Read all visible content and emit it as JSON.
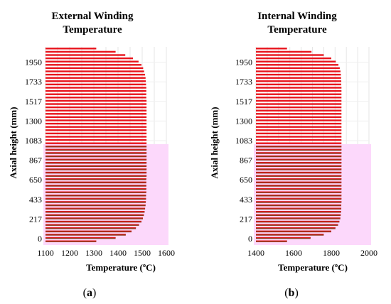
{
  "chart_data": [
    {
      "type": "bar",
      "orientation": "horizontal",
      "title_lines": [
        "External Winding",
        "Temperature"
      ],
      "xlabel": "Temperature (ºC)",
      "ylabel": "Axial height (mm)",
      "xlim": [
        1100,
        1600
      ],
      "xticks": [
        "1100",
        "1200",
        "1300",
        "1400",
        "1500",
        "1600"
      ],
      "yticks": [
        "0",
        "217",
        "433",
        "650",
        "867",
        "1083",
        "1300",
        "1517",
        "1733",
        "1950"
      ],
      "grid": true,
      "caption": "(a)",
      "caption_letter": "a",
      "series_colors": {
        "upper": "#e8141c",
        "lower": "#8a3a1a",
        "band": "#fcd8fb"
      },
      "values": [
        1310,
        1390,
        1432,
        1456,
        1474,
        1487,
        1497,
        1503,
        1507,
        1510,
        1512,
        1514,
        1515,
        1516,
        1516,
        1517,
        1517,
        1517,
        1517,
        1517,
        1518,
        1518,
        1518,
        1518,
        1518,
        1518,
        1518,
        1518,
        1518,
        1518,
        1518,
        1518,
        1518,
        1518,
        1518,
        1518,
        1518,
        1518,
        1518,
        1518,
        1518,
        1518,
        1518,
        1518,
        1517,
        1517,
        1517,
        1517,
        1516,
        1515,
        1514,
        1512,
        1508,
        1504,
        1497,
        1485,
        1462,
        1430,
        1390,
        1310
      ]
    },
    {
      "type": "bar",
      "orientation": "horizontal",
      "title_lines": [
        "Internal Winding",
        "Temperature"
      ],
      "xlabel": "Temperature (ºC)",
      "ylabel": "Axial height (mm)",
      "xlim": [
        1400,
        2000
      ],
      "xticks": [
        "1400",
        "1600",
        "1800",
        "2000"
      ],
      "yticks": [
        "0",
        "217",
        "433",
        "650",
        "867",
        "1083",
        "1300",
        "1517",
        "1733",
        "1950"
      ],
      "grid": true,
      "caption": "(b)",
      "caption_letter": "b",
      "series_colors": {
        "upper": "#e8141c",
        "lower": "#8a3a1a",
        "band": "#fcd8fb"
      },
      "values": [
        1565,
        1690,
        1760,
        1800,
        1822,
        1836,
        1843,
        1848,
        1850,
        1852,
        1853,
        1853,
        1854,
        1854,
        1854,
        1854,
        1854,
        1854,
        1854,
        1854,
        1854,
        1854,
        1854,
        1854,
        1854,
        1854,
        1854,
        1854,
        1854,
        1854,
        1854,
        1854,
        1854,
        1854,
        1854,
        1854,
        1854,
        1854,
        1854,
        1854,
        1854,
        1854,
        1854,
        1854,
        1854,
        1854,
        1854,
        1854,
        1853,
        1853,
        1852,
        1851,
        1849,
        1845,
        1838,
        1824,
        1800,
        1760,
        1695,
        1565
      ]
    }
  ]
}
